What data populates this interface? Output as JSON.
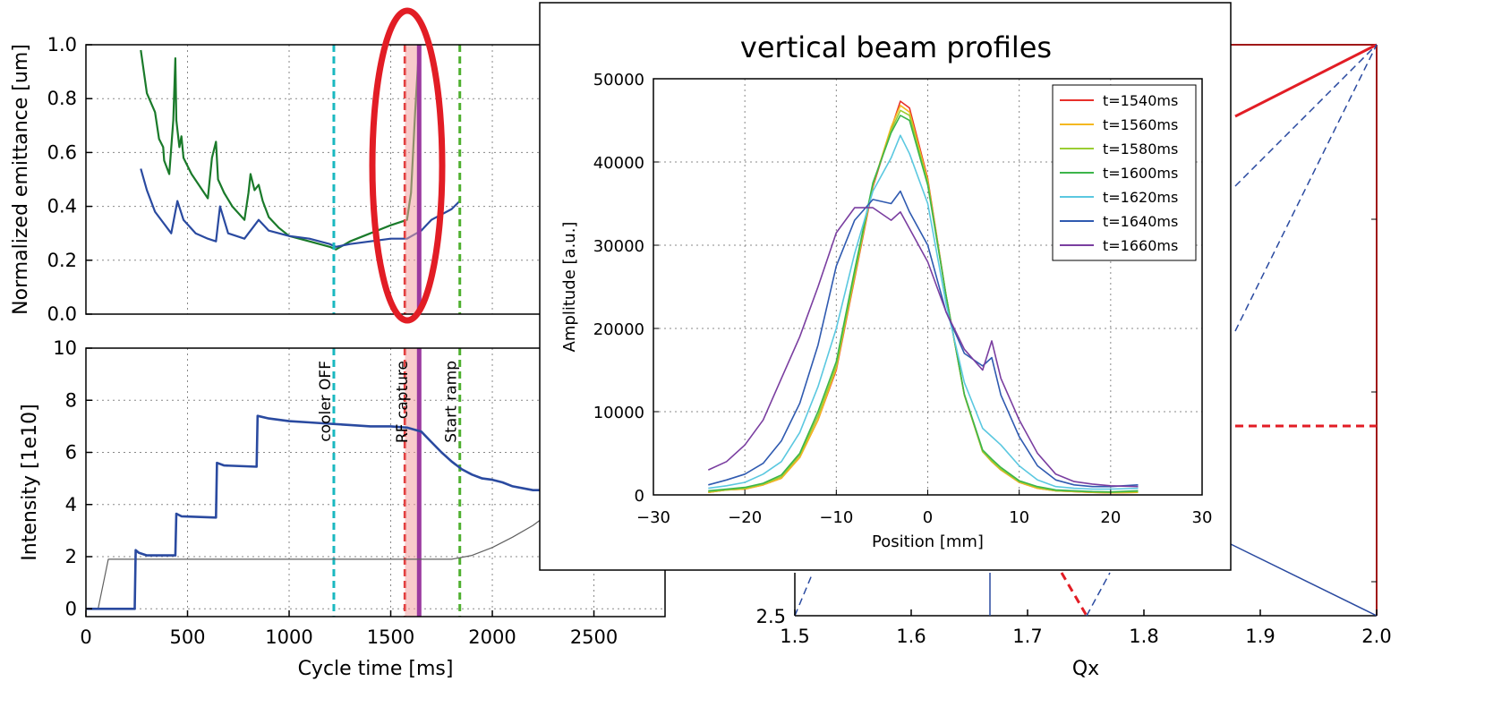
{
  "chart_data": [
    {
      "id": "emittance",
      "type": "line",
      "ylabel": "Normalized emittance [um]",
      "xlim": [
        0,
        2850
      ],
      "ylim": [
        0,
        1.0
      ],
      "yticks": [
        0.0,
        0.2,
        0.4,
        0.6,
        0.8,
        1.0
      ],
      "ytick_labels": [
        "0.0",
        "0.2",
        "0.4",
        "0.6",
        "0.8",
        "1.0"
      ],
      "grid": true,
      "series": [
        {
          "color": "#1a7a2a",
          "x": [
            270,
            300,
            340,
            360,
            380,
            385,
            410,
            430,
            440,
            445,
            460,
            470,
            480,
            520,
            600,
            620,
            640,
            650,
            680,
            720,
            780,
            800,
            810,
            830,
            850,
            870,
            900,
            950,
            1000,
            1100,
            1200,
            1230,
            1300,
            1400,
            1500,
            1580,
            1600,
            1620,
            1640
          ],
          "y": [
            0.98,
            0.82,
            0.75,
            0.65,
            0.62,
            0.57,
            0.52,
            0.72,
            0.95,
            0.72,
            0.62,
            0.66,
            0.58,
            0.52,
            0.43,
            0.58,
            0.64,
            0.5,
            0.45,
            0.4,
            0.35,
            0.45,
            0.52,
            0.46,
            0.48,
            0.42,
            0.36,
            0.32,
            0.29,
            0.27,
            0.25,
            0.24,
            0.27,
            0.3,
            0.33,
            0.35,
            0.45,
            0.75,
            1.0
          ]
        },
        {
          "color": "#2a4aa0",
          "x": [
            270,
            300,
            340,
            420,
            450,
            480,
            540,
            600,
            640,
            660,
            700,
            780,
            800,
            820,
            850,
            900,
            1000,
            1100,
            1200,
            1230,
            1300,
            1400,
            1500,
            1580,
            1650,
            1700,
            1800,
            1840
          ],
          "y": [
            0.54,
            0.46,
            0.38,
            0.3,
            0.42,
            0.35,
            0.3,
            0.28,
            0.27,
            0.4,
            0.3,
            0.28,
            0.3,
            0.32,
            0.35,
            0.31,
            0.29,
            0.28,
            0.26,
            0.25,
            0.26,
            0.27,
            0.28,
            0.28,
            0.31,
            0.35,
            0.39,
            0.42
          ]
        }
      ],
      "vlines": [
        {
          "x": 1220,
          "color": "#1ab8c0",
          "style": "dashed"
        },
        {
          "x": 1570,
          "color": "#e03030",
          "style": "dashed"
        },
        {
          "x": 1840,
          "color": "#4fb030",
          "style": "dashed"
        }
      ]
    },
    {
      "id": "intensity",
      "type": "line",
      "ylabel": "Intensity [1e10]",
      "xlabel": "Cycle time [ms]",
      "xlim": [
        0,
        2850
      ],
      "ylim": [
        -0.3,
        10
      ],
      "xticks": [
        0,
        500,
        1000,
        1500,
        2000,
        2500
      ],
      "xtick_labels": [
        "0",
        "500",
        "1000",
        "1500",
        "2000",
        "2500"
      ],
      "yticks": [
        0,
        2,
        4,
        6,
        8,
        10
      ],
      "ytick_labels": [
        "0",
        "2",
        "4",
        "6",
        "8",
        "10"
      ],
      "grid": true,
      "annotations": [
        {
          "text": "cooler OFF",
          "x": 1220
        },
        {
          "text": "RF capture",
          "x": 1600
        },
        {
          "text": "Start ramp",
          "x": 1840
        }
      ],
      "series": [
        {
          "color": "#2a4aa0",
          "x": [
            0,
            240,
            245,
            260,
            300,
            440,
            445,
            470,
            640,
            645,
            680,
            840,
            845,
            900,
            1000,
            1100,
            1200,
            1300,
            1400,
            1500,
            1580,
            1650,
            1700,
            1750,
            1800,
            1850,
            1900,
            1950,
            2000,
            2050,
            2100,
            2200,
            2270
          ],
          "y": [
            0,
            0,
            2.25,
            2.15,
            2.05,
            2.05,
            3.65,
            3.55,
            3.5,
            5.6,
            5.5,
            5.45,
            7.4,
            7.3,
            7.2,
            7.15,
            7.1,
            7.05,
            7.0,
            7.0,
            6.95,
            6.8,
            6.4,
            6.0,
            5.65,
            5.35,
            5.15,
            5.0,
            4.95,
            4.85,
            4.7,
            4.55,
            4.55
          ]
        },
        {
          "color": "#606060",
          "x": [
            60,
            110,
            1800,
            1900,
            2000,
            2100,
            2200,
            2270
          ],
          "y": [
            0,
            1.9,
            1.9,
            2.05,
            2.35,
            2.75,
            3.2,
            3.6
          ]
        }
      ],
      "vlines": [
        {
          "x": 1220,
          "color": "#1ab8c0",
          "style": "dashed"
        },
        {
          "x": 1570,
          "color": "#e03030",
          "style": "dashed"
        },
        {
          "x": 1840,
          "color": "#4fb030",
          "style": "dashed"
        }
      ]
    },
    {
      "id": "tune-diagram",
      "type": "line",
      "xlabel": "Qx",
      "xlim": [
        1.5,
        2.0
      ],
      "xticks": [
        1.5,
        1.6,
        1.7,
        1.8,
        1.9,
        2.0
      ],
      "xtick_labels": [
        "1.5",
        "1.6",
        "1.7",
        "1.8",
        "1.9",
        "2.0"
      ],
      "ytick_labels": [
        "2.5"
      ]
    },
    {
      "id": "profiles",
      "type": "line",
      "title": "vertical beam profiles",
      "xlabel": "Position [mm]",
      "ylabel": "Amplitude [a.u.]",
      "xlim": [
        -30,
        30
      ],
      "ylim": [
        0,
        50000
      ],
      "xticks": [
        -30,
        -20,
        -10,
        0,
        10,
        20,
        30
      ],
      "xtick_labels": [
        "−30",
        "−20",
        "−10",
        "0",
        "10",
        "20",
        "30"
      ],
      "yticks": [
        0,
        10000,
        20000,
        30000,
        40000,
        50000
      ],
      "ytick_labels": [
        "0",
        "10000",
        "20000",
        "30000",
        "40000",
        "50000"
      ],
      "grid": true,
      "legend_position": "top-right",
      "x": [
        -24,
        -22,
        -20,
        -18,
        -16,
        -14,
        -12,
        -10,
        -8,
        -6,
        -4,
        -3,
        -2,
        0,
        2,
        4,
        6,
        7,
        8,
        10,
        12,
        14,
        16,
        18,
        20,
        23
      ],
      "series": [
        {
          "name": "t=1540ms",
          "color": "#e8302a",
          "y": [
            300,
            600,
            700,
            1200,
            2000,
            4500,
            9000,
            15000,
            26000,
            37000,
            44000,
            47300,
            46500,
            38000,
            24000,
            12000,
            5200,
            4000,
            3000,
            1500,
            800,
            500,
            400,
            300,
            250,
            300
          ]
        },
        {
          "name": "t=1560ms",
          "color": "#f4b820",
          "y": [
            300,
            600,
            700,
            1200,
            2000,
            4500,
            9000,
            15200,
            26200,
            37200,
            44200,
            46800,
            46000,
            37800,
            24000,
            12000,
            5200,
            4000,
            3000,
            1500,
            800,
            500,
            400,
            300,
            250,
            300
          ]
        },
        {
          "name": "t=1580ms",
          "color": "#9acd32",
          "y": [
            400,
            600,
            800,
            1300,
            2200,
            4800,
            9500,
            15500,
            26500,
            37300,
            43800,
            46200,
            45600,
            37500,
            24000,
            12000,
            5200,
            4100,
            3100,
            1600,
            900,
            500,
            450,
            350,
            300,
            400
          ]
        },
        {
          "name": "t=1600ms",
          "color": "#3cb54a",
          "y": [
            500,
            700,
            900,
            1400,
            2400,
            5000,
            10000,
            16000,
            27000,
            37500,
            43500,
            45600,
            45000,
            37200,
            24000,
            12100,
            5400,
            4300,
            3300,
            1700,
            1000,
            600,
            500,
            400,
            350,
            500
          ]
        },
        {
          "name": "t=1620ms",
          "color": "#5bc8e0",
          "y": [
            800,
            1100,
            1500,
            2500,
            4000,
            7500,
            13000,
            20000,
            29000,
            36500,
            40500,
            43200,
            41000,
            35000,
            23000,
            13500,
            8000,
            7000,
            6000,
            3500,
            1800,
            1000,
            800,
            700,
            700,
            800
          ]
        },
        {
          "name": "t=1640ms",
          "color": "#2f5ab0",
          "y": [
            1200,
            1800,
            2500,
            3800,
            6500,
            11000,
            18000,
            27500,
            33000,
            35500,
            35000,
            36500,
            34000,
            30000,
            22000,
            17000,
            15500,
            16500,
            12000,
            7000,
            3500,
            1800,
            1200,
            1000,
            1000,
            1200
          ]
        },
        {
          "name": "t=1660ms",
          "color": "#7a3ea0",
          "y": [
            3000,
            4000,
            6000,
            9000,
            14000,
            19000,
            25000,
            31500,
            34500,
            34500,
            33000,
            34000,
            32000,
            28000,
            22000,
            17500,
            15000,
            18500,
            14000,
            9000,
            5000,
            2500,
            1600,
            1300,
            1100,
            1000
          ]
        }
      ]
    }
  ]
}
